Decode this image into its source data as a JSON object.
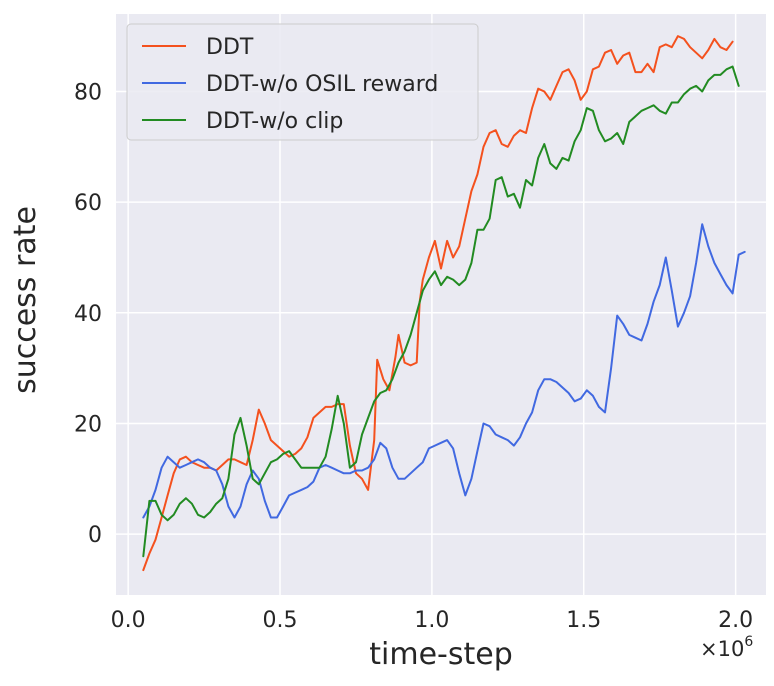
{
  "chart_data": {
    "type": "line",
    "title": "",
    "xlabel": "time-step",
    "ylabel": "success rate",
    "x_offset_label": "×10",
    "x_offset_exponent": "6",
    "xlim": [
      -0.04,
      2.1
    ],
    "ylim": [
      -11,
      94
    ],
    "xticks": [
      0.0,
      0.5,
      1.0,
      1.5,
      2.0
    ],
    "xtick_labels": [
      "0.0",
      "0.5",
      "1.0",
      "1.5",
      "2.0"
    ],
    "yticks": [
      0,
      20,
      40,
      60,
      80
    ],
    "ytick_labels": [
      "0",
      "20",
      "40",
      "60",
      "80"
    ],
    "grid": true,
    "legend_position": "top-left",
    "series": [
      {
        "name": "DDT",
        "color": "#f4511e",
        "points": [
          [
            0.05,
            -6.5
          ],
          [
            0.07,
            -3.5
          ],
          [
            0.09,
            -1
          ],
          [
            0.11,
            3
          ],
          [
            0.13,
            7
          ],
          [
            0.15,
            11
          ],
          [
            0.17,
            13.5
          ],
          [
            0.19,
            14
          ],
          [
            0.21,
            13
          ],
          [
            0.23,
            12.5
          ],
          [
            0.25,
            12
          ],
          [
            0.27,
            12
          ],
          [
            0.29,
            11.5
          ],
          [
            0.31,
            12.5
          ],
          [
            0.33,
            13.5
          ],
          [
            0.35,
            13.5
          ],
          [
            0.37,
            13
          ],
          [
            0.39,
            12.5
          ],
          [
            0.41,
            17
          ],
          [
            0.43,
            22.5
          ],
          [
            0.45,
            20
          ],
          [
            0.47,
            17
          ],
          [
            0.49,
            16
          ],
          [
            0.51,
            15
          ],
          [
            0.53,
            14
          ],
          [
            0.55,
            14.5
          ],
          [
            0.57,
            15.5
          ],
          [
            0.59,
            17.5
          ],
          [
            0.61,
            21
          ],
          [
            0.63,
            22
          ],
          [
            0.65,
            23
          ],
          [
            0.67,
            23
          ],
          [
            0.69,
            23.5
          ],
          [
            0.71,
            23.5
          ],
          [
            0.73,
            16
          ],
          [
            0.75,
            11
          ],
          [
            0.77,
            10
          ],
          [
            0.79,
            8
          ],
          [
            0.81,
            17
          ],
          [
            0.82,
            31.5
          ],
          [
            0.84,
            28
          ],
          [
            0.86,
            26
          ],
          [
            0.88,
            32
          ],
          [
            0.89,
            36
          ],
          [
            0.91,
            31
          ],
          [
            0.93,
            30.5
          ],
          [
            0.95,
            31
          ],
          [
            0.96,
            42
          ],
          [
            0.97,
            46
          ],
          [
            0.99,
            50
          ],
          [
            1.01,
            53
          ],
          [
            1.03,
            48
          ],
          [
            1.05,
            53
          ],
          [
            1.07,
            50
          ],
          [
            1.09,
            52
          ],
          [
            1.11,
            57
          ],
          [
            1.13,
            62
          ],
          [
            1.15,
            65
          ],
          [
            1.17,
            70
          ],
          [
            1.19,
            72.5
          ],
          [
            1.21,
            73
          ],
          [
            1.23,
            70.5
          ],
          [
            1.25,
            70
          ],
          [
            1.27,
            72
          ],
          [
            1.29,
            73
          ],
          [
            1.31,
            72.5
          ],
          [
            1.33,
            77
          ],
          [
            1.35,
            80.5
          ],
          [
            1.37,
            80
          ],
          [
            1.39,
            78.5
          ],
          [
            1.41,
            81
          ],
          [
            1.43,
            83.5
          ],
          [
            1.45,
            84
          ],
          [
            1.47,
            82
          ],
          [
            1.49,
            78.5
          ],
          [
            1.51,
            80
          ],
          [
            1.53,
            84
          ],
          [
            1.55,
            84.5
          ],
          [
            1.57,
            87
          ],
          [
            1.59,
            87.5
          ],
          [
            1.61,
            85
          ],
          [
            1.63,
            86.5
          ],
          [
            1.65,
            87
          ],
          [
            1.67,
            83.5
          ],
          [
            1.69,
            83.5
          ],
          [
            1.71,
            85
          ],
          [
            1.73,
            83.5
          ],
          [
            1.75,
            88
          ],
          [
            1.77,
            88.5
          ],
          [
            1.79,
            88
          ],
          [
            1.81,
            90
          ],
          [
            1.83,
            89.5
          ],
          [
            1.85,
            88
          ],
          [
            1.87,
            87
          ],
          [
            1.89,
            86
          ],
          [
            1.91,
            87.5
          ],
          [
            1.93,
            89.5
          ],
          [
            1.95,
            88
          ],
          [
            1.97,
            87.5
          ],
          [
            1.99,
            89
          ]
        ]
      },
      {
        "name": "DDT-w/o OSIL reward",
        "color": "#4169e1",
        "points": [
          [
            0.05,
            3
          ],
          [
            0.07,
            5
          ],
          [
            0.09,
            8
          ],
          [
            0.11,
            12
          ],
          [
            0.13,
            14
          ],
          [
            0.15,
            13
          ],
          [
            0.17,
            12
          ],
          [
            0.19,
            12.5
          ],
          [
            0.21,
            13
          ],
          [
            0.23,
            13.5
          ],
          [
            0.25,
            13
          ],
          [
            0.27,
            12
          ],
          [
            0.29,
            11.5
          ],
          [
            0.31,
            9
          ],
          [
            0.33,
            5
          ],
          [
            0.35,
            3
          ],
          [
            0.37,
            5
          ],
          [
            0.39,
            9
          ],
          [
            0.41,
            11.5
          ],
          [
            0.43,
            10
          ],
          [
            0.45,
            6
          ],
          [
            0.47,
            3
          ],
          [
            0.49,
            3
          ],
          [
            0.51,
            5
          ],
          [
            0.53,
            7
          ],
          [
            0.55,
            7.5
          ],
          [
            0.57,
            8
          ],
          [
            0.59,
            8.5
          ],
          [
            0.61,
            9.5
          ],
          [
            0.63,
            12
          ],
          [
            0.65,
            12.5
          ],
          [
            0.67,
            12
          ],
          [
            0.69,
            11.5
          ],
          [
            0.71,
            11
          ],
          [
            0.73,
            11
          ],
          [
            0.75,
            11.5
          ],
          [
            0.77,
            11.5
          ],
          [
            0.79,
            12
          ],
          [
            0.81,
            13.5
          ],
          [
            0.83,
            16.5
          ],
          [
            0.85,
            15.5
          ],
          [
            0.87,
            12
          ],
          [
            0.89,
            10
          ],
          [
            0.91,
            10
          ],
          [
            0.93,
            11
          ],
          [
            0.95,
            12
          ],
          [
            0.97,
            13
          ],
          [
            0.99,
            15.5
          ],
          [
            1.01,
            16
          ],
          [
            1.03,
            16.5
          ],
          [
            1.05,
            17
          ],
          [
            1.07,
            15.5
          ],
          [
            1.09,
            11
          ],
          [
            1.11,
            7
          ],
          [
            1.13,
            10
          ],
          [
            1.15,
            15
          ],
          [
            1.17,
            20
          ],
          [
            1.19,
            19.5
          ],
          [
            1.21,
            18
          ],
          [
            1.23,
            17.5
          ],
          [
            1.25,
            17
          ],
          [
            1.27,
            16
          ],
          [
            1.29,
            17.5
          ],
          [
            1.31,
            20
          ],
          [
            1.33,
            22
          ],
          [
            1.35,
            26
          ],
          [
            1.37,
            28
          ],
          [
            1.39,
            28
          ],
          [
            1.41,
            27.5
          ],
          [
            1.43,
            26.5
          ],
          [
            1.45,
            25.5
          ],
          [
            1.47,
            24
          ],
          [
            1.49,
            24.5
          ],
          [
            1.51,
            26
          ],
          [
            1.53,
            25
          ],
          [
            1.55,
            23
          ],
          [
            1.57,
            22
          ],
          [
            1.59,
            30
          ],
          [
            1.61,
            39.5
          ],
          [
            1.63,
            38
          ],
          [
            1.65,
            36
          ],
          [
            1.67,
            35.5
          ],
          [
            1.69,
            35
          ],
          [
            1.71,
            38
          ],
          [
            1.73,
            42
          ],
          [
            1.75,
            45
          ],
          [
            1.77,
            50
          ],
          [
            1.79,
            44
          ],
          [
            1.81,
            37.5
          ],
          [
            1.83,
            40
          ],
          [
            1.85,
            43
          ],
          [
            1.87,
            49
          ],
          [
            1.89,
            56
          ],
          [
            1.91,
            52
          ],
          [
            1.93,
            49
          ],
          [
            1.95,
            47
          ],
          [
            1.97,
            45
          ],
          [
            1.99,
            43.5
          ],
          [
            2.01,
            50.5
          ],
          [
            2.03,
            51
          ]
        ]
      },
      {
        "name": "DDT-w/o clip",
        "color": "#228b22",
        "points": [
          [
            0.05,
            -4
          ],
          [
            0.07,
            6
          ],
          [
            0.09,
            6
          ],
          [
            0.11,
            3.5
          ],
          [
            0.13,
            2.5
          ],
          [
            0.15,
            3.5
          ],
          [
            0.17,
            5.5
          ],
          [
            0.19,
            6.5
          ],
          [
            0.21,
            5.5
          ],
          [
            0.23,
            3.5
          ],
          [
            0.25,
            3
          ],
          [
            0.27,
            4
          ],
          [
            0.29,
            5.5
          ],
          [
            0.31,
            6.5
          ],
          [
            0.33,
            10
          ],
          [
            0.35,
            18
          ],
          [
            0.37,
            21
          ],
          [
            0.39,
            16
          ],
          [
            0.41,
            10
          ],
          [
            0.43,
            9
          ],
          [
            0.45,
            11
          ],
          [
            0.47,
            13
          ],
          [
            0.49,
            13.5
          ],
          [
            0.51,
            14.5
          ],
          [
            0.53,
            15
          ],
          [
            0.55,
            13.5
          ],
          [
            0.57,
            12
          ],
          [
            0.59,
            12
          ],
          [
            0.61,
            12
          ],
          [
            0.63,
            12
          ],
          [
            0.65,
            14
          ],
          [
            0.67,
            19
          ],
          [
            0.69,
            25
          ],
          [
            0.71,
            20
          ],
          [
            0.73,
            12
          ],
          [
            0.75,
            13
          ],
          [
            0.77,
            18
          ],
          [
            0.79,
            21
          ],
          [
            0.81,
            24
          ],
          [
            0.83,
            25.5
          ],
          [
            0.85,
            26
          ],
          [
            0.87,
            28
          ],
          [
            0.89,
            31
          ],
          [
            0.91,
            33
          ],
          [
            0.93,
            36
          ],
          [
            0.95,
            40
          ],
          [
            0.97,
            44
          ],
          [
            0.99,
            46
          ],
          [
            1.01,
            47.5
          ],
          [
            1.03,
            45
          ],
          [
            1.05,
            46.5
          ],
          [
            1.07,
            46
          ],
          [
            1.09,
            45
          ],
          [
            1.11,
            46
          ],
          [
            1.13,
            49
          ],
          [
            1.15,
            55
          ],
          [
            1.17,
            55
          ],
          [
            1.19,
            57
          ],
          [
            1.21,
            64
          ],
          [
            1.23,
            64.5
          ],
          [
            1.25,
            61
          ],
          [
            1.27,
            61.5
          ],
          [
            1.29,
            59
          ],
          [
            1.31,
            64
          ],
          [
            1.33,
            63
          ],
          [
            1.35,
            68
          ],
          [
            1.37,
            70.5
          ],
          [
            1.39,
            67
          ],
          [
            1.41,
            66
          ],
          [
            1.43,
            68
          ],
          [
            1.45,
            67.5
          ],
          [
            1.47,
            71
          ],
          [
            1.49,
            73
          ],
          [
            1.51,
            77
          ],
          [
            1.53,
            76.5
          ],
          [
            1.55,
            73
          ],
          [
            1.57,
            71
          ],
          [
            1.59,
            71.5
          ],
          [
            1.61,
            72.5
          ],
          [
            1.63,
            70.5
          ],
          [
            1.65,
            74.5
          ],
          [
            1.67,
            75.5
          ],
          [
            1.69,
            76.5
          ],
          [
            1.71,
            77
          ],
          [
            1.73,
            77.5
          ],
          [
            1.75,
            76.5
          ],
          [
            1.77,
            76
          ],
          [
            1.79,
            78
          ],
          [
            1.81,
            78
          ],
          [
            1.83,
            79.5
          ],
          [
            1.85,
            80.5
          ],
          [
            1.87,
            81
          ],
          [
            1.89,
            80
          ],
          [
            1.91,
            82
          ],
          [
            1.93,
            83
          ],
          [
            1.95,
            83
          ],
          [
            1.97,
            84
          ],
          [
            1.99,
            84.5
          ],
          [
            2.01,
            81
          ]
        ]
      }
    ]
  }
}
